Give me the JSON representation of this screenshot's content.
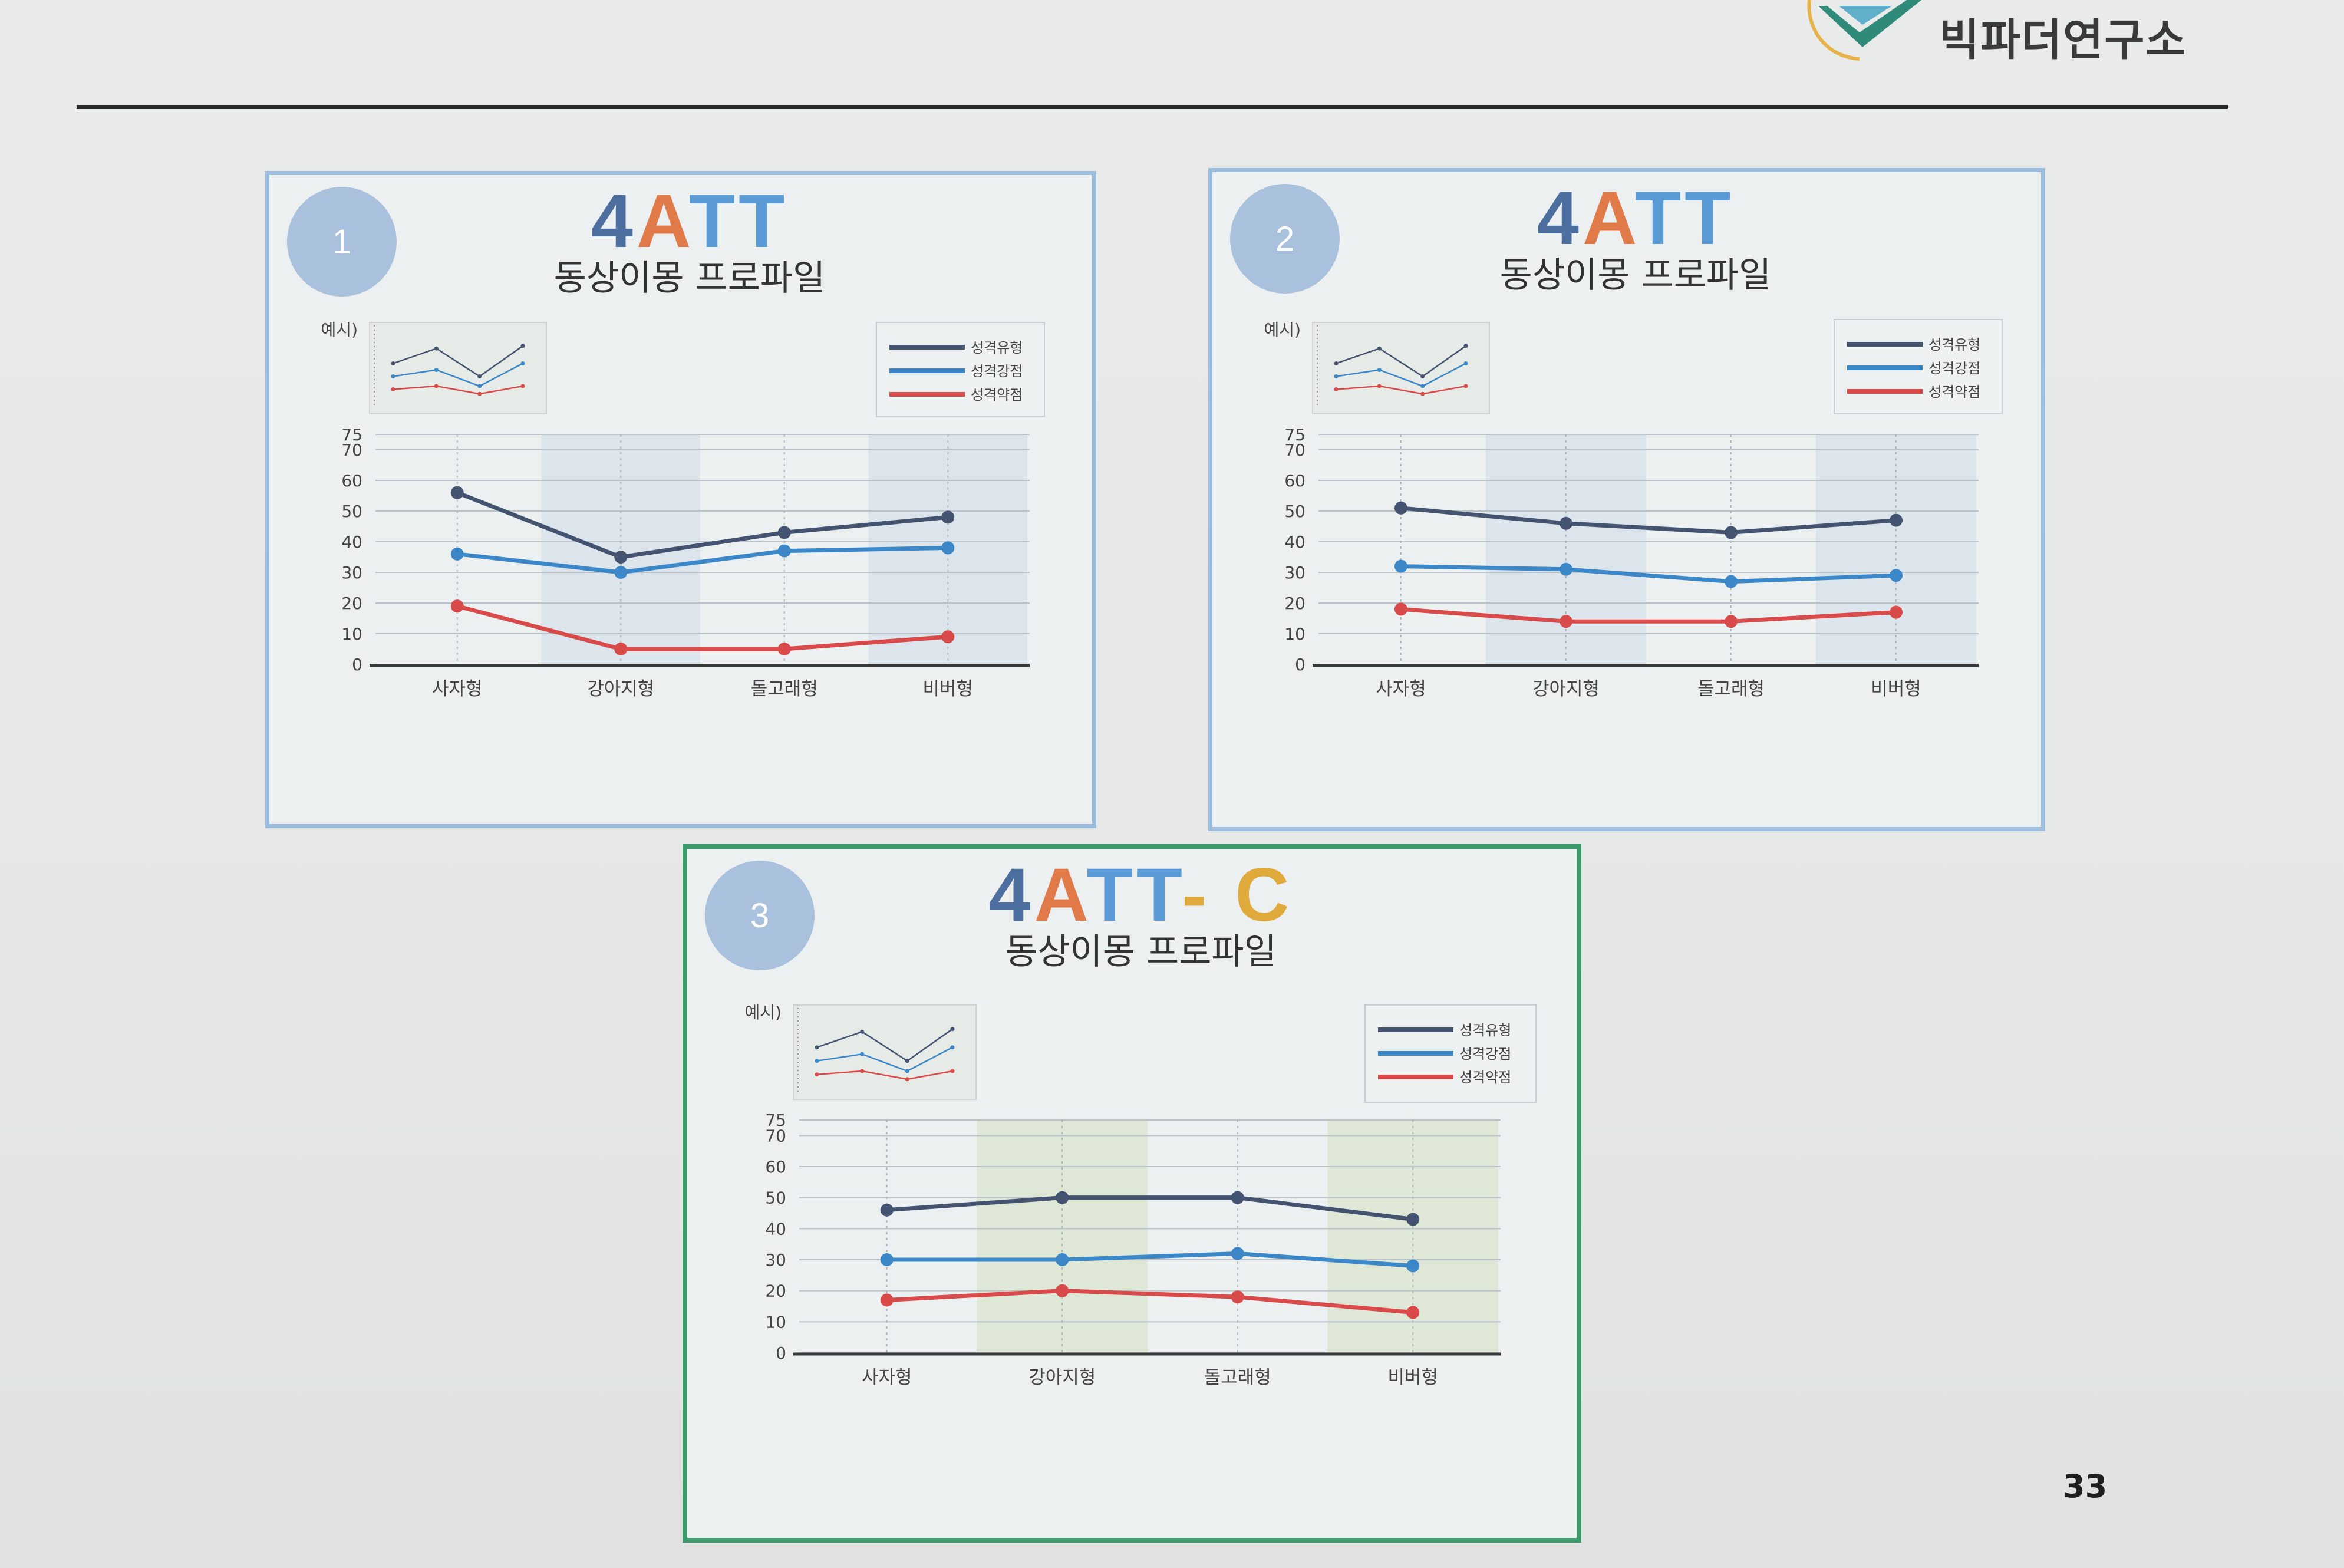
{
  "logo": {
    "text": "빅파더연구소",
    "icon": "handshake-check-icon"
  },
  "page_number": "33",
  "colors": {
    "dark": "#445470",
    "blue": "#3c87c8",
    "red": "#d94a4a",
    "panel_border_blue": "#9bbcdc",
    "panel_border_green": "#3d9a6c",
    "badge": "#a9c1dc",
    "band_blue": "#d9e3ea",
    "band_green": "#dde5d3"
  },
  "panels": [
    {
      "badge": "1",
      "title_parts": [
        "4",
        "A",
        "TT",
        ""
      ],
      "subtitle": "동상이몽 프로파일",
      "example_label": "예시)"
    },
    {
      "badge": "2",
      "title_parts": [
        "4",
        "A",
        "TT",
        ""
      ],
      "subtitle": "동상이몽 프로파일",
      "example_label": "예시)"
    },
    {
      "badge": "3",
      "title_parts": [
        "4",
        "A",
        "TT",
        "- C"
      ],
      "subtitle": "동상이몽 프로파일",
      "example_label": "예시)"
    }
  ],
  "chart_data": [
    {
      "type": "line",
      "categories": [
        "사자형",
        "강아지형",
        "돌고래형",
        "비버형"
      ],
      "yticks": [
        0,
        10,
        20,
        30,
        40,
        50,
        60,
        70,
        75
      ],
      "ylim": [
        0,
        75
      ],
      "grid": true,
      "legend_position": "top-right",
      "series": [
        {
          "name": "성격유형",
          "color": "#445470",
          "values": [
            56,
            35,
            43,
            48
          ]
        },
        {
          "name": "성격강점",
          "color": "#3c87c8",
          "values": [
            36,
            30,
            37,
            38
          ]
        },
        {
          "name": "성격약점",
          "color": "#d94a4a",
          "values": [
            19,
            5,
            5,
            9
          ]
        }
      ]
    },
    {
      "type": "line",
      "categories": [
        "사자형",
        "강아지형",
        "돌고래형",
        "비버형"
      ],
      "yticks": [
        0,
        10,
        20,
        30,
        40,
        50,
        60,
        70,
        75
      ],
      "ylim": [
        0,
        75
      ],
      "grid": true,
      "legend_position": "top-right",
      "series": [
        {
          "name": "성격유형",
          "color": "#445470",
          "values": [
            51,
            46,
            43,
            47
          ]
        },
        {
          "name": "성격강점",
          "color": "#3c87c8",
          "values": [
            32,
            31,
            27,
            29
          ]
        },
        {
          "name": "성격약점",
          "color": "#d94a4a",
          "values": [
            18,
            14,
            14,
            17
          ]
        }
      ]
    },
    {
      "type": "line",
      "categories": [
        "사자형",
        "강아지형",
        "돌고래형",
        "비버형"
      ],
      "yticks": [
        0,
        10,
        20,
        30,
        40,
        50,
        60,
        70,
        75
      ],
      "ylim": [
        0,
        75
      ],
      "grid": true,
      "legend_position": "top-right",
      "series": [
        {
          "name": "성격유형",
          "color": "#445470",
          "values": [
            46,
            50,
            50,
            43
          ]
        },
        {
          "name": "성격강점",
          "color": "#3c87c8",
          "values": [
            30,
            30,
            32,
            28
          ]
        },
        {
          "name": "성격약점",
          "color": "#d94a4a",
          "values": [
            17,
            20,
            18,
            13
          ]
        }
      ]
    }
  ]
}
